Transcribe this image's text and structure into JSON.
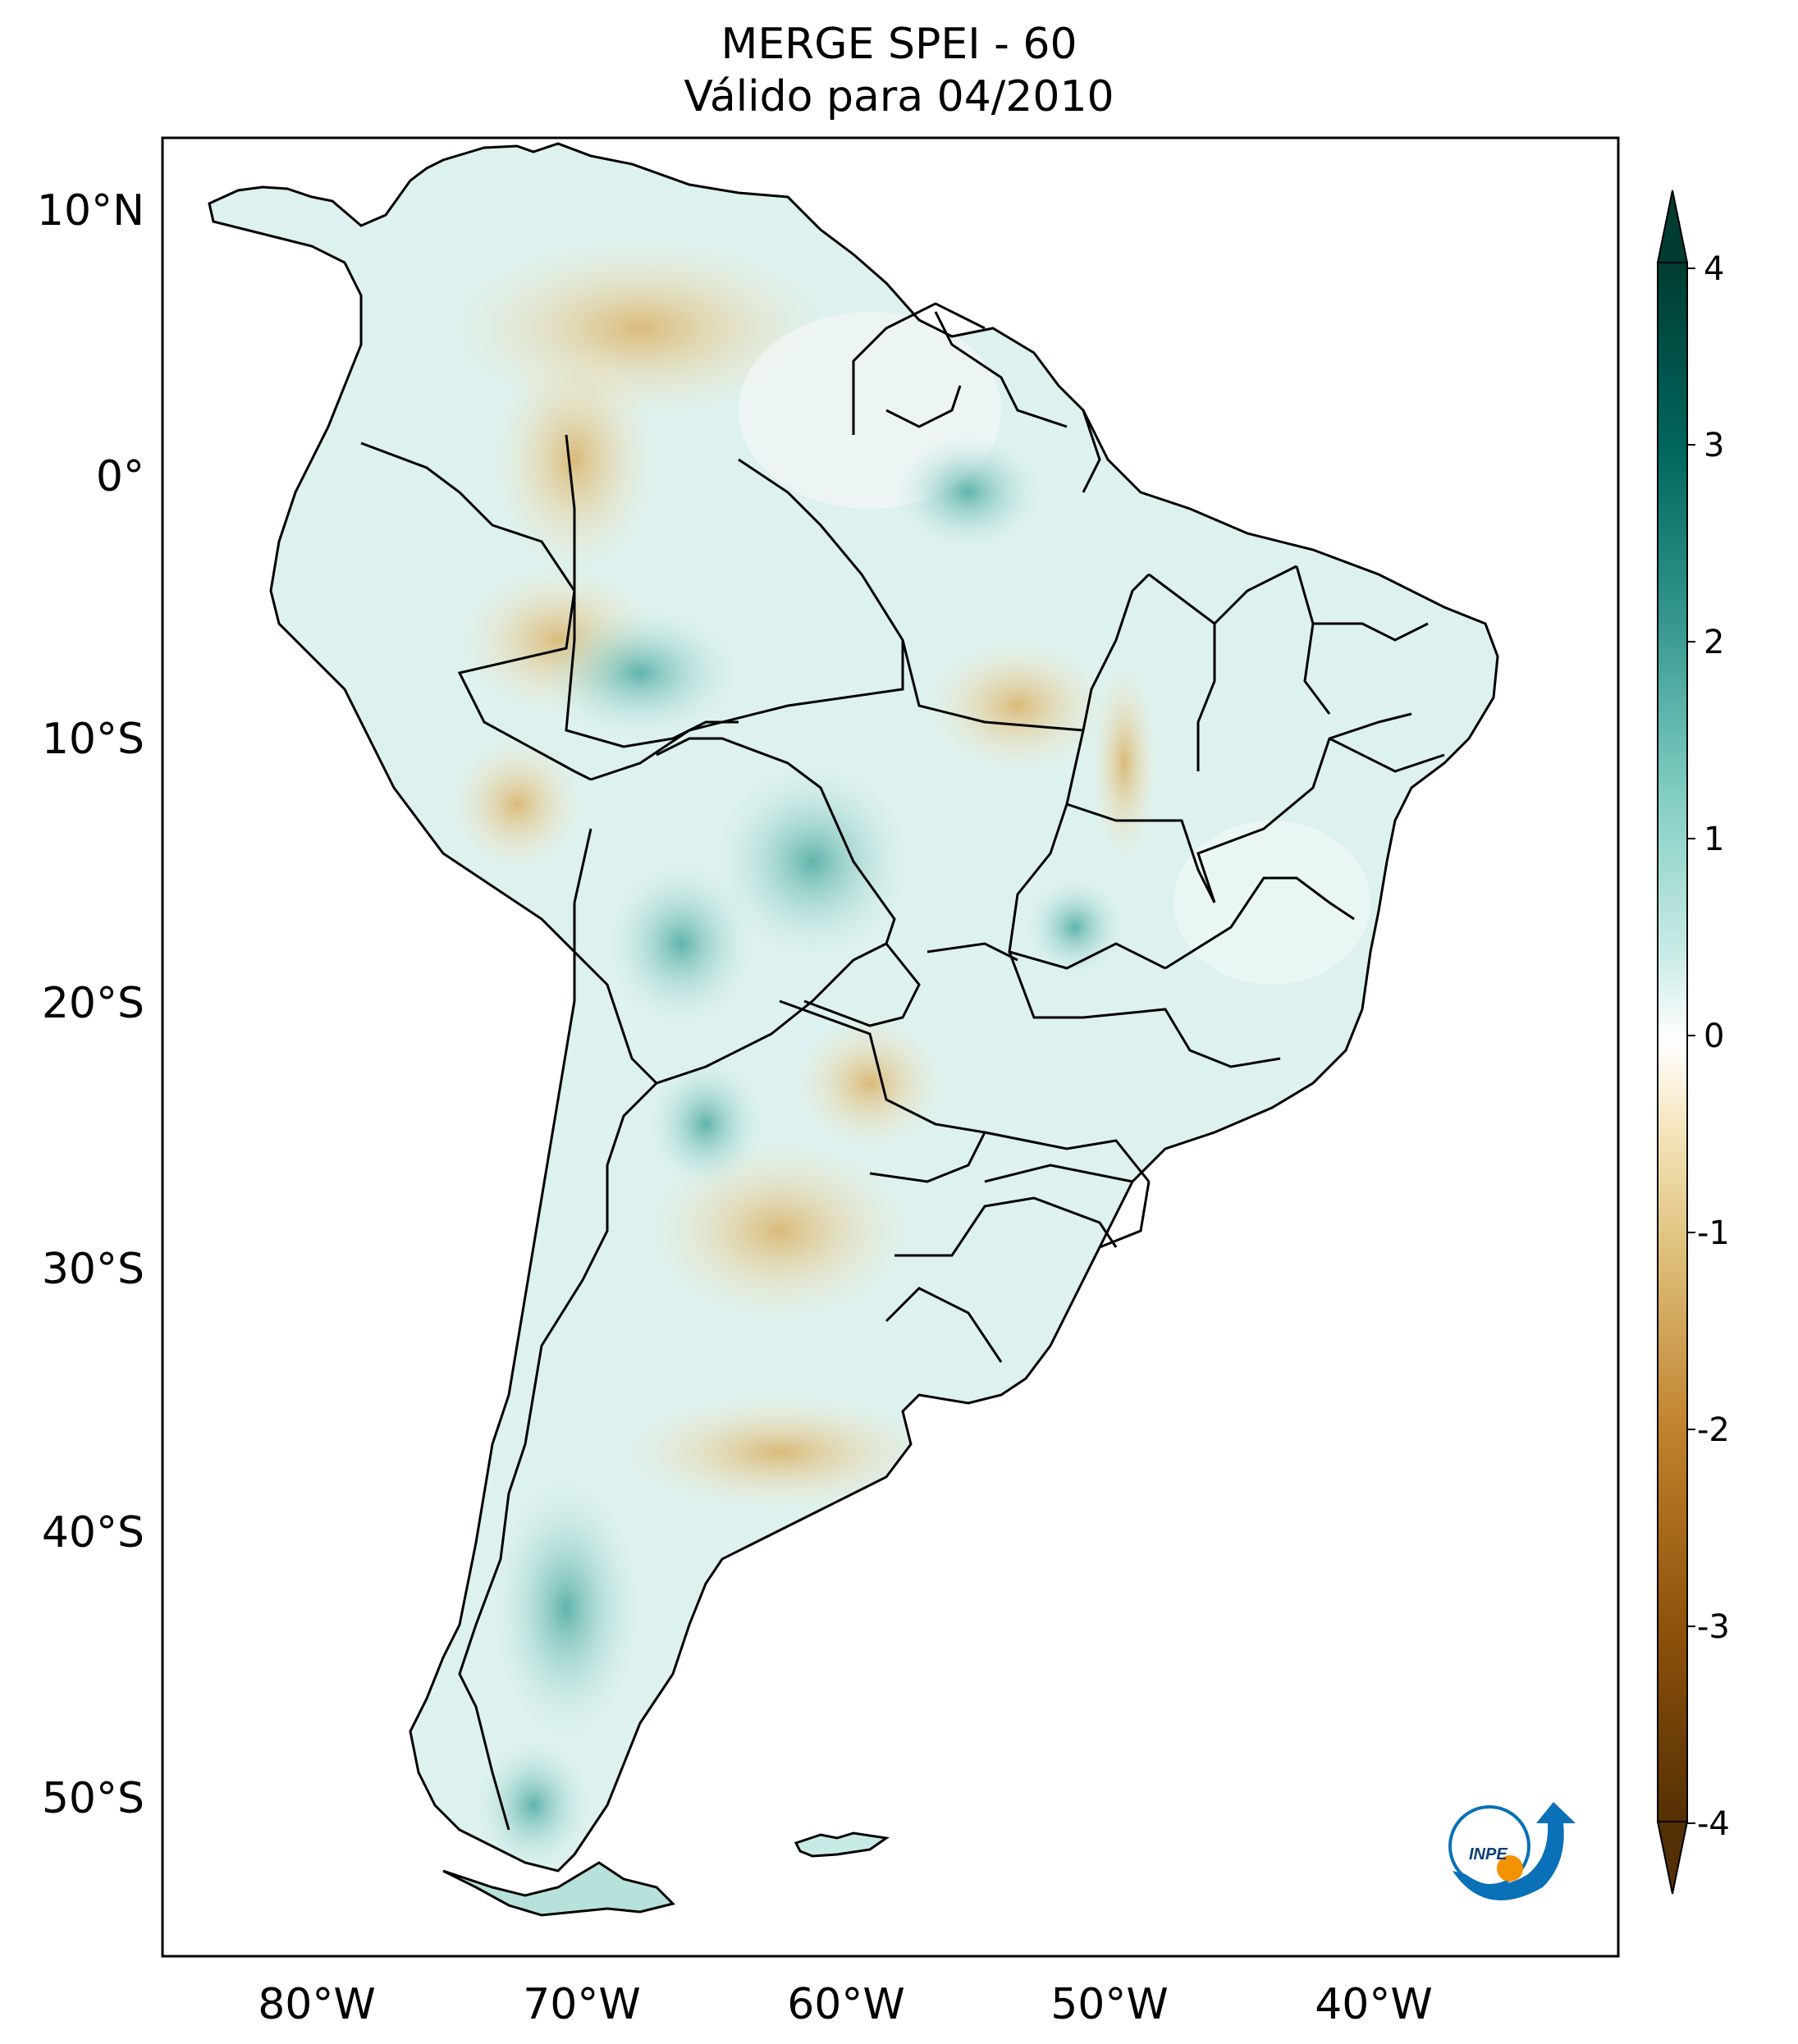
{
  "title": {
    "line1": "MERGE   SPEI - 60",
    "line2": "Válido para 04/2010"
  },
  "map": {
    "lat_labels": [
      "10°N",
      "0°",
      "10°S",
      "20°S",
      "30°S",
      "40°S",
      "50°S"
    ],
    "lon_labels": [
      "80°W",
      "70°W",
      "60°W",
      "50°W",
      "40°W"
    ]
  },
  "colorbar": {
    "ticks": [
      "4",
      "3",
      "2",
      "1",
      "0",
      "-1",
      "-2",
      "-3",
      "-4"
    ],
    "range": [
      -4,
      4
    ],
    "colors": {
      "min": "#543005",
      "neg_mid": "#dfc27d",
      "zero": "#ffffff",
      "pos_mid": "#80cdc1",
      "max": "#003c30"
    }
  },
  "logo": {
    "text": "INPE",
    "name": "inpe-logo"
  }
}
